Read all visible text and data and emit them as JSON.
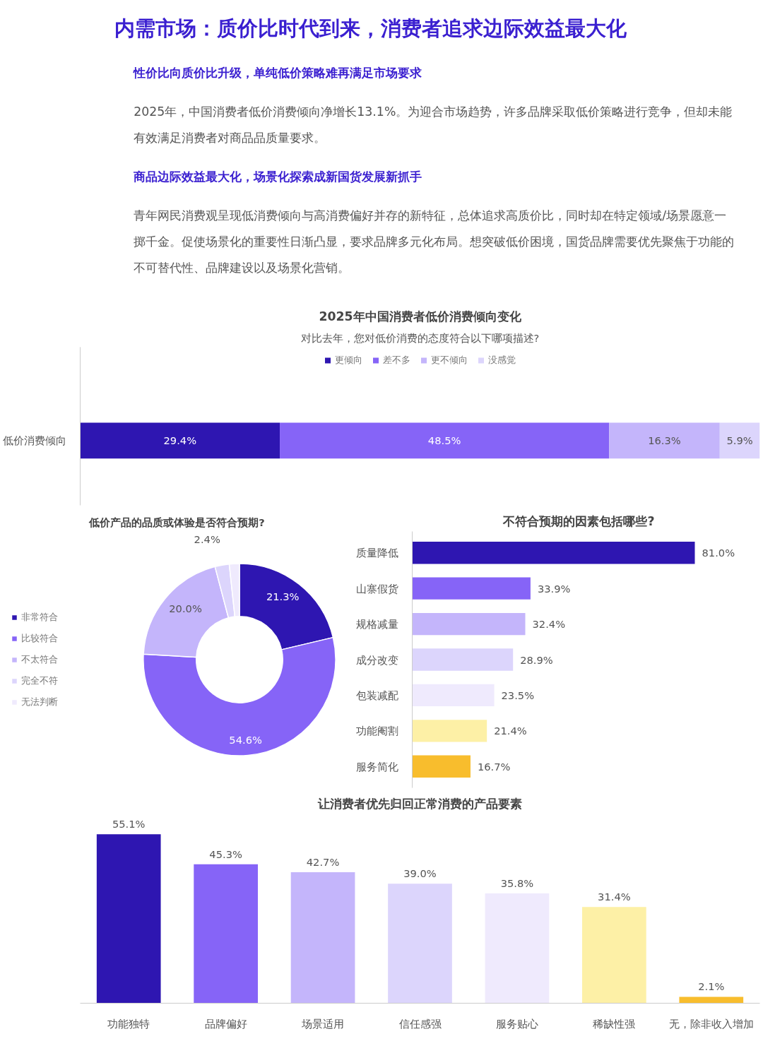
{
  "chart_data": [
    {
      "type": "other",
      "title": "内需市场：质价比时代到来，消费者追求边际效益最大化",
      "annotations": [
        "性价比向质价比升级，单纯低价策略难再满足市场要求",
        "2025年，中国消费者低价消费倾向净增长13.1%。为迎合市场趋势，许多品牌采取低价策略进行竞争，但却未能有效满足消费者对商品品质量要求。",
        "商品边际效益最大化，场景化探索成新国货发展新抓手",
        "青年网民消费观呈现低消费倾向与高消费偏好并存的新特征，总体追求高质价比，同时却在特定领域/场景愿意一掷千金。促使场景化的重要性日渐凸显，要求品牌多元化布局。想突破低价困境，国货品牌需要优先聚焦于功能的不可替代性、品牌建设以及场景化营销。"
      ]
    },
    {
      "type": "bar",
      "title": "2025年中国消费者低价消费倾向变化",
      "subtitle": "对比去年，您对低价消费的态度符合以下哪项描述?",
      "orientation": "horizontal",
      "stacked": true,
      "legend": "top",
      "categories": [
        "低价消费倾向"
      ],
      "series": [
        {
          "name": "更倾向",
          "color": "#2e16b1",
          "values": [
            29.4
          ],
          "value_labels": [
            "29.4%"
          ]
        },
        {
          "name": "差不多",
          "color": "#8664f7",
          "values": [
            48.5
          ],
          "value_labels": [
            "48.5%"
          ]
        },
        {
          "name": "更不倾向",
          "color": "#c4b5fb",
          "values": [
            16.3
          ],
          "value_labels": [
            "16.3%"
          ]
        },
        {
          "name": "没感觉",
          "color": "#dcd5fc",
          "values": [
            5.9
          ],
          "value_labels": [
            "5.9%"
          ]
        }
      ]
    },
    {
      "type": "donut",
      "title": "低价产品的品质或体验是否符合预期?",
      "legend": "left",
      "categories": [
        "非常符合",
        "比较符合",
        "不太符合",
        "完全不符",
        "无法判断"
      ],
      "values": [
        21.3,
        54.6,
        20.0,
        2.4,
        1.7
      ],
      "colors": [
        "#2e16b1",
        "#8664f7",
        "#c4b5fb",
        "#dcd5fc",
        "#efeafd"
      ],
      "value_labels": [
        "21.3%",
        "54.6%",
        "20.0%",
        "2.4%",
        null
      ]
    },
    {
      "type": "bar",
      "title": "不符合预期的因素包括哪些?",
      "orientation": "horizontal",
      "categories": [
        "质量降低",
        "山寨假货",
        "规格减量",
        "成分改变",
        "包装减配",
        "功能阉割",
        "服务简化"
      ],
      "values": [
        81.0,
        33.9,
        32.4,
        28.9,
        23.5,
        21.4,
        16.7
      ],
      "colors": [
        "#2e16b1",
        "#8664f7",
        "#c4b5fb",
        "#dcd5fc",
        "#efeafd",
        "#fdf0a6",
        "#f8bd2d"
      ],
      "value_labels": [
        "81.0%",
        "33.9%",
        "32.4%",
        "28.9%",
        "23.5%",
        "21.4%",
        "16.7%"
      ]
    },
    {
      "type": "bar",
      "title": "让消费者优先归回正常消费的产品要素",
      "categories": [
        "功能独特",
        "品牌偏好",
        "场景适用",
        "信任感强",
        "服务贴心",
        "稀缺性强",
        "无，除非收入增加"
      ],
      "values": [
        55.1,
        45.3,
        42.7,
        39.0,
        35.8,
        31.4,
        2.1
      ],
      "colors": [
        "#2e16b1",
        "#8664f7",
        "#c4b5fb",
        "#dcd5fc",
        "#efeafd",
        "#fdf0a6",
        "#f8bd2d"
      ],
      "value_labels": [
        "55.1%",
        "45.3%",
        "42.7%",
        "39.0%",
        "35.8%",
        "31.4%",
        "2.1%"
      ]
    }
  ]
}
